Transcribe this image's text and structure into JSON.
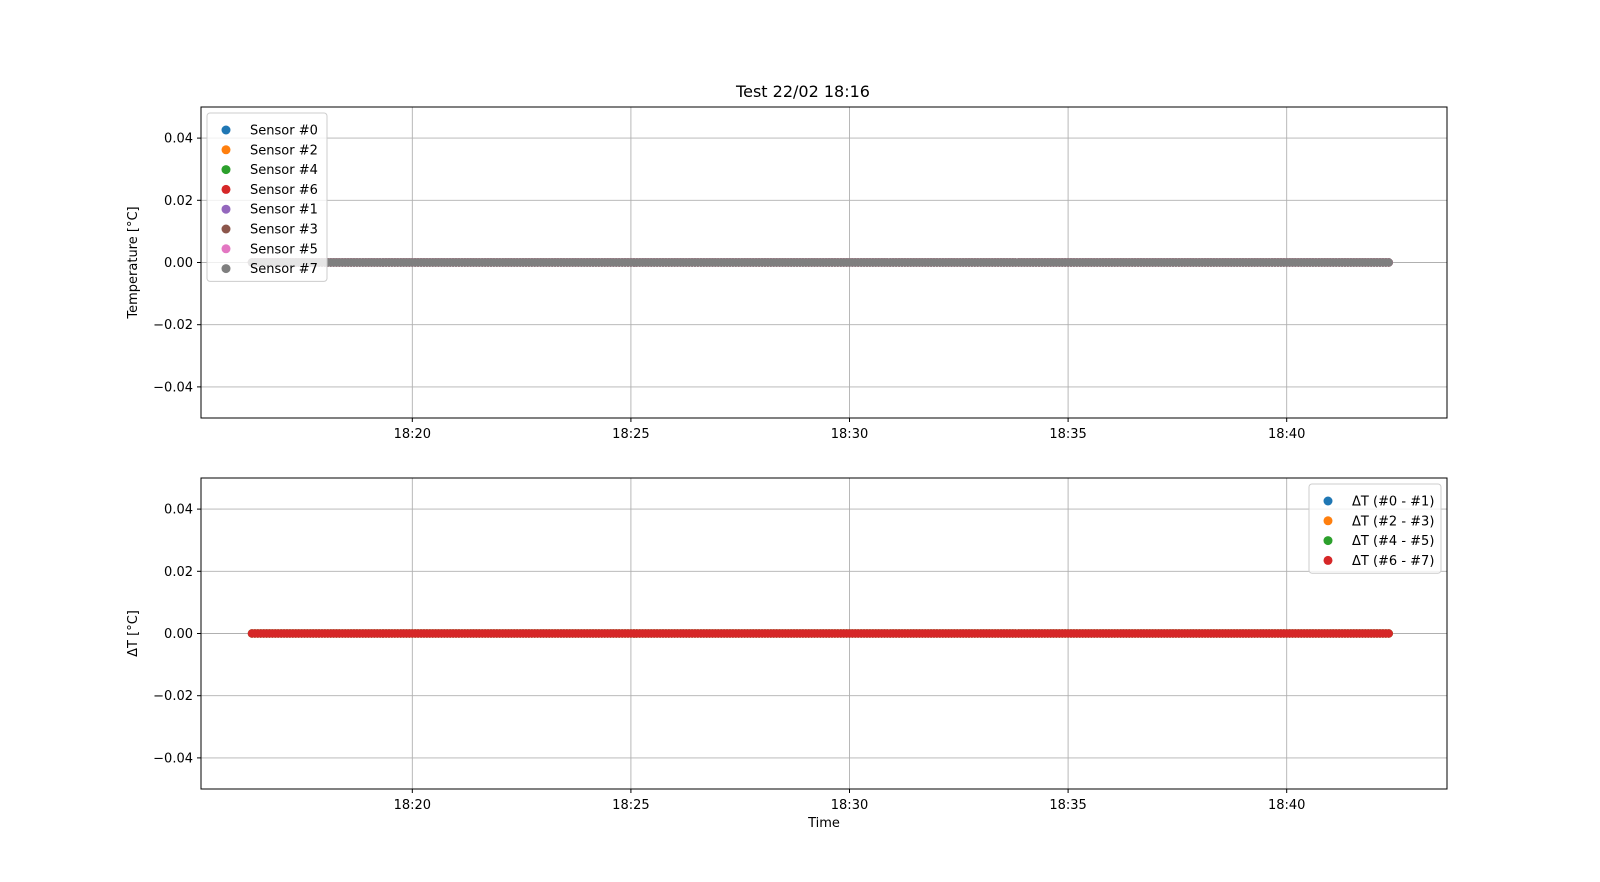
{
  "figure_title": "Test 22/02 18:16",
  "chart_data": [
    {
      "type": "scatter",
      "title": "Test 22/02 18:16",
      "xlabel": "",
      "ylabel": "Temperature [°C]",
      "x_type": "time",
      "x_start": "18:16:20",
      "x_end": "18:42:20",
      "x_step_seconds": 4,
      "xlim": [
        "18:15:10",
        "18:43:40"
      ],
      "xticks": [
        "18:20",
        "18:25",
        "18:30",
        "18:35",
        "18:40"
      ],
      "ylim": [
        -0.05,
        0.05
      ],
      "yticks": [
        "0.04",
        "0.02",
        "0.00",
        "−0.02",
        "−0.04"
      ],
      "grid": true,
      "legend_position": "upper left",
      "series": [
        {
          "name": "Sensor #0",
          "color": "#1f77b4",
          "value": 0.0
        },
        {
          "name": "Sensor #2",
          "color": "#ff7f0e",
          "value": 0.0
        },
        {
          "name": "Sensor #4",
          "color": "#2ca02c",
          "value": 0.0
        },
        {
          "name": "Sensor #6",
          "color": "#d62728",
          "value": 0.0
        },
        {
          "name": "Sensor #1",
          "color": "#9467bd",
          "value": 0.0
        },
        {
          "name": "Sensor #3",
          "color": "#8c564b",
          "value": 0.0
        },
        {
          "name": "Sensor #5",
          "color": "#e377c2",
          "value": 0.0
        },
        {
          "name": "Sensor #7",
          "color": "#7f7f7f",
          "value": 0.0
        }
      ]
    },
    {
      "type": "scatter",
      "title": "",
      "xlabel": "Time",
      "ylabel": "ΔT [°C]",
      "x_type": "time",
      "x_start": "18:16:20",
      "x_end": "18:42:20",
      "x_step_seconds": 4,
      "xlim": [
        "18:15:10",
        "18:43:40"
      ],
      "xticks": [
        "18:20",
        "18:25",
        "18:30",
        "18:35",
        "18:40"
      ],
      "ylim": [
        -0.05,
        0.05
      ],
      "yticks": [
        "0.04",
        "0.02",
        "0.00",
        "−0.02",
        "−0.04"
      ],
      "grid": true,
      "legend_position": "upper right",
      "series": [
        {
          "name": "ΔT (#0 - #1)",
          "color": "#1f77b4",
          "value": 0.0
        },
        {
          "name": "ΔT (#2 - #3)",
          "color": "#ff7f0e",
          "value": 0.0
        },
        {
          "name": "ΔT (#4 - #5)",
          "color": "#2ca02c",
          "value": 0.0
        },
        {
          "name": "ΔT (#6 - #7)",
          "color": "#d62728",
          "value": 0.0
        }
      ]
    }
  ]
}
